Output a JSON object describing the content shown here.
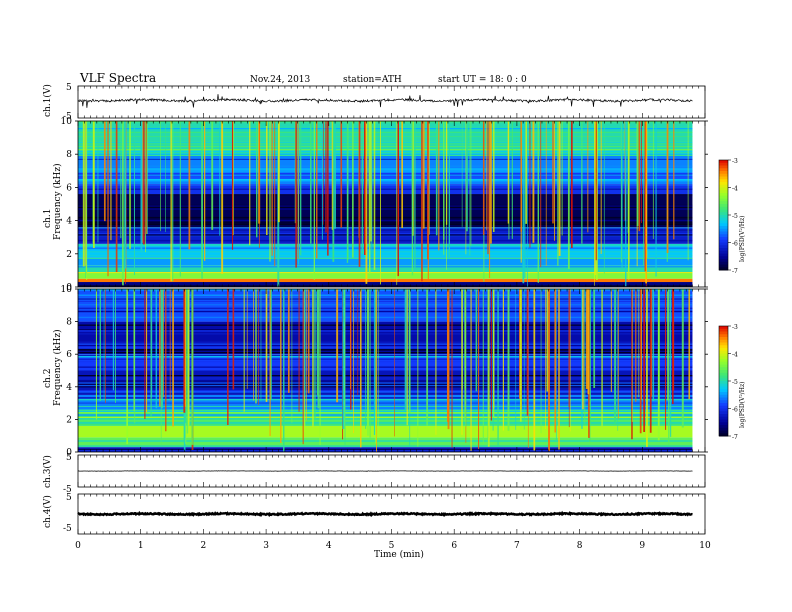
{
  "header": {
    "title": "VLF  Spectra",
    "date": "Nov.24, 2013",
    "station": "station=ATH",
    "start": "start  UT  =    18: 0  : 0"
  },
  "chart_data": [
    {
      "type": "line",
      "name": "ch1-waveform",
      "ylabel": "ch.1(V)",
      "ylim": [
        -5,
        5
      ],
      "yticks": [
        "5",
        "-5"
      ],
      "xlim": [
        0,
        9.8
      ],
      "baseline_value": 0.5
    },
    {
      "type": "heatmap",
      "name": "ch1-spectrogram",
      "ylabel": "ch.1\nFrequency  (kHz)",
      "ylabel_channel": "ch.1",
      "ylabel_axis": "Frequency  (kHz)",
      "ylim": [
        0,
        10
      ],
      "yticks": [
        "0",
        "2",
        "4",
        "6",
        "8",
        "10"
      ],
      "xlim": [
        0,
        9.8
      ],
      "colorbar": {
        "label": "log(PSD(V²/Hz)",
        "range": [
          -7,
          -3
        ],
        "ticks": [
          "-3",
          "-4",
          "-5",
          "-6",
          "-7"
        ]
      },
      "bands": [
        {
          "from": 0.0,
          "to": 0.3,
          "level": -6.6
        },
        {
          "from": 0.3,
          "to": 0.5,
          "level": -3.4
        },
        {
          "from": 0.5,
          "to": 0.9,
          "level": -4.4
        },
        {
          "from": 0.9,
          "to": 1.3,
          "level": -5.0
        },
        {
          "from": 1.3,
          "to": 1.8,
          "level": -5.5
        },
        {
          "from": 1.8,
          "to": 2.6,
          "level": -5.3
        },
        {
          "from": 2.6,
          "to": 3.6,
          "level": -6.2
        },
        {
          "from": 3.6,
          "to": 5.6,
          "level": -6.8
        },
        {
          "from": 5.6,
          "to": 6.2,
          "level": -6.0
        },
        {
          "from": 6.2,
          "to": 8.0,
          "level": -5.6
        },
        {
          "from": 8.0,
          "to": 10.0,
          "level": -5.0
        }
      ]
    },
    {
      "type": "heatmap",
      "name": "ch2-spectrogram",
      "ylabel": "ch.2\nFrequency  (kHz)",
      "ylabel_channel": "ch.2",
      "ylabel_axis": "Frequency  (kHz)",
      "ylim": [
        0,
        10
      ],
      "yticks": [
        "0",
        "2",
        "4",
        "6",
        "8",
        "10"
      ],
      "xlim": [
        0,
        9.8
      ],
      "colorbar": {
        "label": "log(PSD(V²/Hz)",
        "range": [
          -7,
          -3
        ],
        "ticks": [
          "-3",
          "-4",
          "-5",
          "-6",
          "-7"
        ]
      },
      "bands": [
        {
          "from": 0.0,
          "to": 0.3,
          "level": -6.2
        },
        {
          "from": 0.3,
          "to": 0.9,
          "level": -4.6
        },
        {
          "from": 0.9,
          "to": 1.6,
          "level": -4.2
        },
        {
          "from": 1.6,
          "to": 2.6,
          "level": -4.8
        },
        {
          "from": 2.6,
          "to": 3.5,
          "level": -5.6
        },
        {
          "from": 3.5,
          "to": 5.0,
          "level": -6.3
        },
        {
          "from": 5.0,
          "to": 6.0,
          "level": -5.9
        },
        {
          "from": 6.0,
          "to": 8.0,
          "level": -6.4
        },
        {
          "from": 8.0,
          "to": 10.0,
          "level": -5.8
        }
      ]
    },
    {
      "type": "line",
      "name": "ch3-waveform",
      "ylabel": "ch.3(V)",
      "ylim": [
        -5,
        5
      ],
      "yticks": [
        "5",
        "-5"
      ],
      "xlim": [
        0,
        9.8
      ],
      "baseline_value": 0.0
    },
    {
      "type": "line",
      "name": "ch4-waveform",
      "ylabel": "ch.4(V)",
      "ylim": [
        -5,
        5
      ],
      "yticks": [
        "5",
        "-5"
      ],
      "xlim": [
        0,
        9.8
      ],
      "baseline_value": 0.0
    }
  ],
  "xaxis": {
    "label": "Time  (min)",
    "range": [
      0,
      10
    ],
    "ticks": [
      "0",
      "1",
      "2",
      "3",
      "4",
      "5",
      "6",
      "7",
      "8",
      "9",
      "10"
    ]
  },
  "colors": {
    "spectrum_low": "#000033",
    "spectrum_high": "#ff0000"
  }
}
